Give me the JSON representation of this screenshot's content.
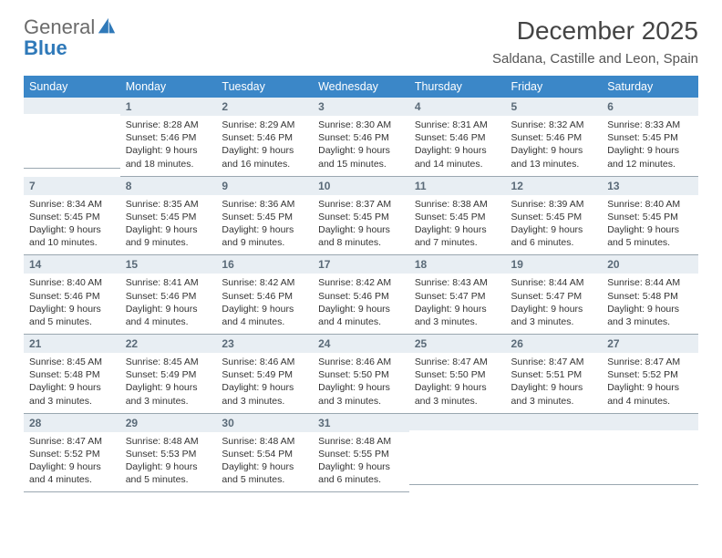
{
  "brand": {
    "word1": "General",
    "word2": "Blue"
  },
  "title": "December 2025",
  "location": "Saldana, Castille and Leon, Spain",
  "colors": {
    "header_bg": "#3b87c8",
    "header_text": "#ffffff",
    "daynum_bg": "#e8eef3",
    "daynum_text": "#5a6a78",
    "rule": "#9aa7b0",
    "logo_gray": "#6b6b6b",
    "logo_blue": "#2f79b9"
  },
  "weekdays": [
    "Sunday",
    "Monday",
    "Tuesday",
    "Wednesday",
    "Thursday",
    "Friday",
    "Saturday"
  ],
  "weeks": [
    [
      {
        "day": "",
        "sunrise": "",
        "sunset": "",
        "daylight": ""
      },
      {
        "day": "1",
        "sunrise": "Sunrise: 8:28 AM",
        "sunset": "Sunset: 5:46 PM",
        "daylight": "Daylight: 9 hours and 18 minutes."
      },
      {
        "day": "2",
        "sunrise": "Sunrise: 8:29 AM",
        "sunset": "Sunset: 5:46 PM",
        "daylight": "Daylight: 9 hours and 16 minutes."
      },
      {
        "day": "3",
        "sunrise": "Sunrise: 8:30 AM",
        "sunset": "Sunset: 5:46 PM",
        "daylight": "Daylight: 9 hours and 15 minutes."
      },
      {
        "day": "4",
        "sunrise": "Sunrise: 8:31 AM",
        "sunset": "Sunset: 5:46 PM",
        "daylight": "Daylight: 9 hours and 14 minutes."
      },
      {
        "day": "5",
        "sunrise": "Sunrise: 8:32 AM",
        "sunset": "Sunset: 5:46 PM",
        "daylight": "Daylight: 9 hours and 13 minutes."
      },
      {
        "day": "6",
        "sunrise": "Sunrise: 8:33 AM",
        "sunset": "Sunset: 5:45 PM",
        "daylight": "Daylight: 9 hours and 12 minutes."
      }
    ],
    [
      {
        "day": "7",
        "sunrise": "Sunrise: 8:34 AM",
        "sunset": "Sunset: 5:45 PM",
        "daylight": "Daylight: 9 hours and 10 minutes."
      },
      {
        "day": "8",
        "sunrise": "Sunrise: 8:35 AM",
        "sunset": "Sunset: 5:45 PM",
        "daylight": "Daylight: 9 hours and 9 minutes."
      },
      {
        "day": "9",
        "sunrise": "Sunrise: 8:36 AM",
        "sunset": "Sunset: 5:45 PM",
        "daylight": "Daylight: 9 hours and 9 minutes."
      },
      {
        "day": "10",
        "sunrise": "Sunrise: 8:37 AM",
        "sunset": "Sunset: 5:45 PM",
        "daylight": "Daylight: 9 hours and 8 minutes."
      },
      {
        "day": "11",
        "sunrise": "Sunrise: 8:38 AM",
        "sunset": "Sunset: 5:45 PM",
        "daylight": "Daylight: 9 hours and 7 minutes."
      },
      {
        "day": "12",
        "sunrise": "Sunrise: 8:39 AM",
        "sunset": "Sunset: 5:45 PM",
        "daylight": "Daylight: 9 hours and 6 minutes."
      },
      {
        "day": "13",
        "sunrise": "Sunrise: 8:40 AM",
        "sunset": "Sunset: 5:45 PM",
        "daylight": "Daylight: 9 hours and 5 minutes."
      }
    ],
    [
      {
        "day": "14",
        "sunrise": "Sunrise: 8:40 AM",
        "sunset": "Sunset: 5:46 PM",
        "daylight": "Daylight: 9 hours and 5 minutes."
      },
      {
        "day": "15",
        "sunrise": "Sunrise: 8:41 AM",
        "sunset": "Sunset: 5:46 PM",
        "daylight": "Daylight: 9 hours and 4 minutes."
      },
      {
        "day": "16",
        "sunrise": "Sunrise: 8:42 AM",
        "sunset": "Sunset: 5:46 PM",
        "daylight": "Daylight: 9 hours and 4 minutes."
      },
      {
        "day": "17",
        "sunrise": "Sunrise: 8:42 AM",
        "sunset": "Sunset: 5:46 PM",
        "daylight": "Daylight: 9 hours and 4 minutes."
      },
      {
        "day": "18",
        "sunrise": "Sunrise: 8:43 AM",
        "sunset": "Sunset: 5:47 PM",
        "daylight": "Daylight: 9 hours and 3 minutes."
      },
      {
        "day": "19",
        "sunrise": "Sunrise: 8:44 AM",
        "sunset": "Sunset: 5:47 PM",
        "daylight": "Daylight: 9 hours and 3 minutes."
      },
      {
        "day": "20",
        "sunrise": "Sunrise: 8:44 AM",
        "sunset": "Sunset: 5:48 PM",
        "daylight": "Daylight: 9 hours and 3 minutes."
      }
    ],
    [
      {
        "day": "21",
        "sunrise": "Sunrise: 8:45 AM",
        "sunset": "Sunset: 5:48 PM",
        "daylight": "Daylight: 9 hours and 3 minutes."
      },
      {
        "day": "22",
        "sunrise": "Sunrise: 8:45 AM",
        "sunset": "Sunset: 5:49 PM",
        "daylight": "Daylight: 9 hours and 3 minutes."
      },
      {
        "day": "23",
        "sunrise": "Sunrise: 8:46 AM",
        "sunset": "Sunset: 5:49 PM",
        "daylight": "Daylight: 9 hours and 3 minutes."
      },
      {
        "day": "24",
        "sunrise": "Sunrise: 8:46 AM",
        "sunset": "Sunset: 5:50 PM",
        "daylight": "Daylight: 9 hours and 3 minutes."
      },
      {
        "day": "25",
        "sunrise": "Sunrise: 8:47 AM",
        "sunset": "Sunset: 5:50 PM",
        "daylight": "Daylight: 9 hours and 3 minutes."
      },
      {
        "day": "26",
        "sunrise": "Sunrise: 8:47 AM",
        "sunset": "Sunset: 5:51 PM",
        "daylight": "Daylight: 9 hours and 3 minutes."
      },
      {
        "day": "27",
        "sunrise": "Sunrise: 8:47 AM",
        "sunset": "Sunset: 5:52 PM",
        "daylight": "Daylight: 9 hours and 4 minutes."
      }
    ],
    [
      {
        "day": "28",
        "sunrise": "Sunrise: 8:47 AM",
        "sunset": "Sunset: 5:52 PM",
        "daylight": "Daylight: 9 hours and 4 minutes."
      },
      {
        "day": "29",
        "sunrise": "Sunrise: 8:48 AM",
        "sunset": "Sunset: 5:53 PM",
        "daylight": "Daylight: 9 hours and 5 minutes."
      },
      {
        "day": "30",
        "sunrise": "Sunrise: 8:48 AM",
        "sunset": "Sunset: 5:54 PM",
        "daylight": "Daylight: 9 hours and 5 minutes."
      },
      {
        "day": "31",
        "sunrise": "Sunrise: 8:48 AM",
        "sunset": "Sunset: 5:55 PM",
        "daylight": "Daylight: 9 hours and 6 minutes."
      },
      {
        "day": "",
        "sunrise": "",
        "sunset": "",
        "daylight": ""
      },
      {
        "day": "",
        "sunrise": "",
        "sunset": "",
        "daylight": ""
      },
      {
        "day": "",
        "sunrise": "",
        "sunset": "",
        "daylight": ""
      }
    ]
  ]
}
